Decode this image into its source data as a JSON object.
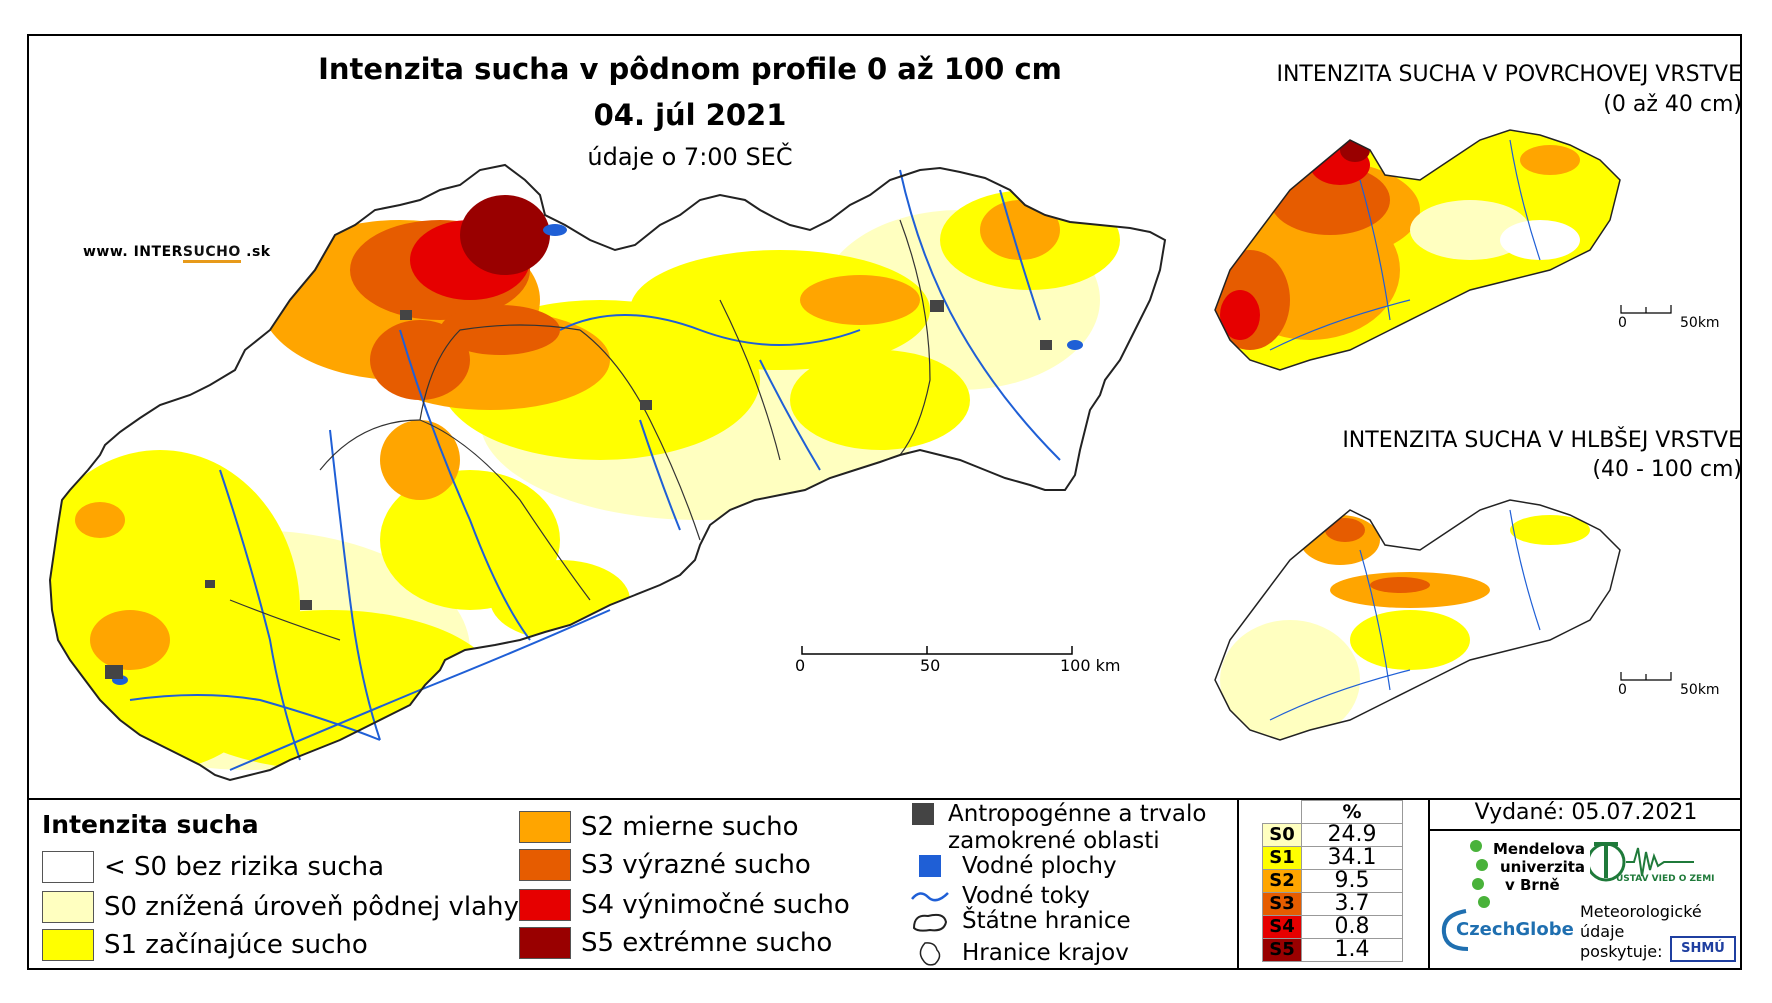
{
  "title": {
    "line1": "Intenzita sucha v pôdnom profile 0 až 100 cm",
    "line2": "04. júl 2021",
    "line3": "údaje o 7:00 SEČ"
  },
  "watermark": {
    "prefix": "www. INTER",
    "accent": "SUCHO",
    "suffix": " .sk"
  },
  "inset_top": {
    "title": "INTENZITA SUCHA V POVRCHOVEJ VRSTVE",
    "subtitle": "(0 až 40 cm)",
    "scale": {
      "zero": "0",
      "end": "50km"
    }
  },
  "inset_bottom": {
    "title": "INTENZITA SUCHA V HLBŠEJ VRSTVE",
    "subtitle": "(40 - 100 cm)",
    "scale": {
      "zero": "0",
      "end": "50km"
    }
  },
  "main_scale": {
    "zero": "0",
    "mid": "50",
    "end": "100 km"
  },
  "legend": {
    "title": "Intenzita sucha",
    "classes": [
      {
        "label": "< S0 bez rizika sucha",
        "color": "#ffffff"
      },
      {
        "label": "S0 znížená úroveň pôdnej vlahy",
        "color": "#ffffc0"
      },
      {
        "label": "S1 začínajúce sucho",
        "color": "#ffff00"
      },
      {
        "label": "S2 mierne sucho",
        "color": "#ffa500"
      },
      {
        "label": "S3 výrazné sucho",
        "color": "#e65c00"
      },
      {
        "label": "S4 výnimočné sucho",
        "color": "#e60000"
      },
      {
        "label": "S5 extrémne sucho",
        "color": "#990000"
      }
    ]
  },
  "symbols": {
    "anthropogenic": "Antropogénne a trvalo zamokrené oblasti",
    "water_bodies": "Vodné plochy",
    "rivers": "Vodné toky",
    "state_border": "Štátne hranice",
    "regions": "Hranice krajov"
  },
  "stats": {
    "header": "%",
    "rows": [
      {
        "label": "S0",
        "value": "24.9",
        "color": "#ffffc0",
        "text_color": "#000000"
      },
      {
        "label": "S1",
        "value": "34.1",
        "color": "#ffff00",
        "text_color": "#000000"
      },
      {
        "label": "S2",
        "value": "9.5",
        "color": "#ffa500",
        "text_color": "#000000"
      },
      {
        "label": "S3",
        "value": "3.7",
        "color": "#e65c00",
        "text_color": "#000000"
      },
      {
        "label": "S4",
        "value": "0.8",
        "color": "#e60000",
        "text_color": "#000000"
      },
      {
        "label": "S5",
        "value": "1.4",
        "color": "#990000",
        "text_color": "#000000"
      }
    ]
  },
  "issued": "Vydané: 05.07.2021",
  "logos": {
    "mendelu_l1": "Mendelova",
    "mendelu_l2": "univerzita",
    "mendelu_l3": "v Brně",
    "czechglobe": "CzechGlobe",
    "uvz": "ÚSTAV VIED O ZEMI",
    "meteo_l1": "Meteorologické",
    "meteo_l2": "údaje",
    "meteo_l3": "poskytuje:",
    "shmu": "SHMÚ"
  }
}
